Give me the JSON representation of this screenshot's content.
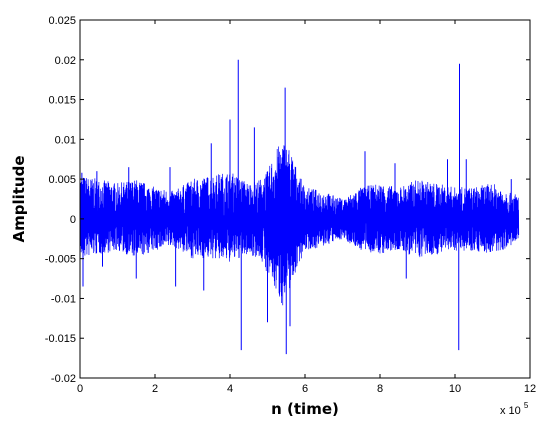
{
  "chart_data": {
    "type": "line",
    "title": "",
    "xlabel": "n (time)",
    "ylabel": "Amplitude",
    "x_scale_note": "x 10",
    "x_scale_exponent": "5",
    "xlim": [
      0,
      12
    ],
    "ylim": [
      -0.02,
      0.025
    ],
    "x_ticks": [
      "0",
      "2",
      "4",
      "6",
      "8",
      "10",
      "12"
    ],
    "y_ticks": [
      "-0.02",
      "-0.015",
      "-0.01",
      "-0.005",
      "0",
      "0.005",
      "0.01",
      "0.015",
      "0.02",
      "0.025"
    ],
    "grid": false,
    "line_color": "#0000ff",
    "series": [
      {
        "x_range": [
          0,
          11.7
        ],
        "envelope_x": [
          0,
          0.5,
          1.0,
          1.5,
          2.0,
          2.5,
          3.0,
          3.5,
          4.0,
          4.5,
          4.8,
          5.0,
          5.2,
          5.4,
          5.6,
          5.8,
          6.0,
          6.5,
          7.0,
          7.5,
          8.0,
          8.5,
          9.0,
          9.5,
          10.0,
          10.5,
          11.0,
          11.7
        ],
        "envelope_upper": [
          0.0055,
          0.005,
          0.0045,
          0.005,
          0.004,
          0.0035,
          0.005,
          0.0055,
          0.006,
          0.0045,
          0.005,
          0.006,
          0.0085,
          0.01,
          0.009,
          0.006,
          0.004,
          0.0035,
          0.0025,
          0.004,
          0.0045,
          0.004,
          0.005,
          0.0045,
          0.004,
          0.004,
          0.0045,
          0.003
        ],
        "envelope_lower": [
          -0.005,
          -0.0045,
          -0.004,
          -0.005,
          -0.004,
          -0.0035,
          -0.005,
          -0.005,
          -0.0055,
          -0.0045,
          -0.005,
          -0.007,
          -0.009,
          -0.011,
          -0.009,
          -0.006,
          -0.004,
          -0.0035,
          -0.0025,
          -0.004,
          -0.0045,
          -0.004,
          -0.005,
          -0.0045,
          -0.004,
          -0.004,
          -0.0045,
          -0.003
        ],
        "spikes": [
          {
            "x": 0.05,
            "y": 0.0058
          },
          {
            "x": 0.08,
            "y": -0.0085
          },
          {
            "x": 0.45,
            "y": 0.006
          },
          {
            "x": 0.6,
            "y": -0.006
          },
          {
            "x": 1.3,
            "y": 0.0065
          },
          {
            "x": 1.5,
            "y": -0.0075
          },
          {
            "x": 2.4,
            "y": 0.0065
          },
          {
            "x": 2.55,
            "y": -0.0085
          },
          {
            "x": 3.5,
            "y": 0.0095
          },
          {
            "x": 3.3,
            "y": -0.009
          },
          {
            "x": 4.22,
            "y": 0.02
          },
          {
            "x": 4.3,
            "y": -0.0165
          },
          {
            "x": 4.0,
            "y": 0.0125
          },
          {
            "x": 4.65,
            "y": 0.0115
          },
          {
            "x": 5.0,
            "y": -0.013
          },
          {
            "x": 5.47,
            "y": 0.0165
          },
          {
            "x": 5.5,
            "y": -0.017
          },
          {
            "x": 5.6,
            "y": -0.0135
          },
          {
            "x": 7.6,
            "y": 0.0085
          },
          {
            "x": 8.4,
            "y": 0.007
          },
          {
            "x": 8.7,
            "y": -0.0075
          },
          {
            "x": 9.8,
            "y": 0.0075
          },
          {
            "x": 10.1,
            "y": -0.0165
          },
          {
            "x": 10.12,
            "y": 0.0195
          },
          {
            "x": 10.3,
            "y": 0.0075
          },
          {
            "x": 11.5,
            "y": 0.005
          }
        ]
      }
    ]
  }
}
